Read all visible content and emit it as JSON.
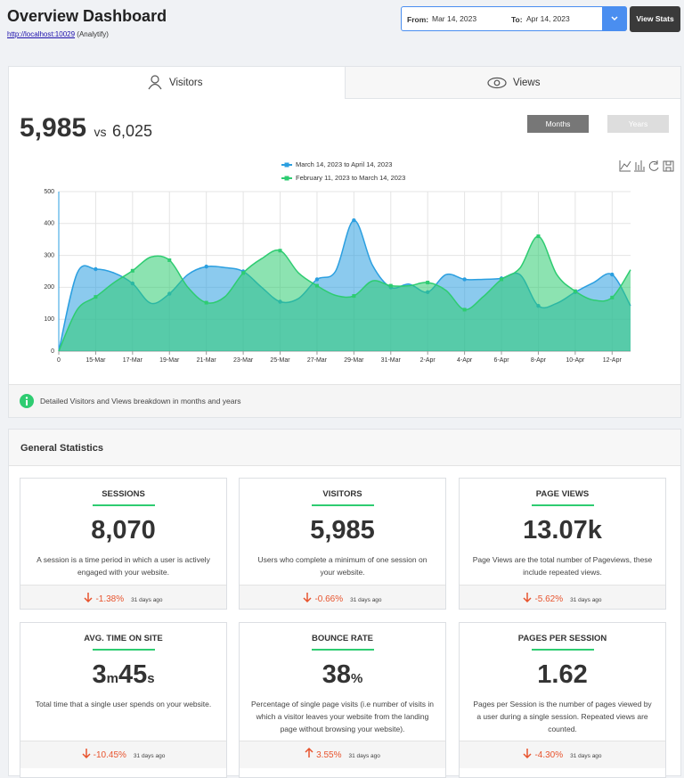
{
  "header": {
    "title": "Overview Dashboard",
    "link": "http://localhost:10029",
    "site": "(Analytify)"
  },
  "date_range": {
    "from_label": "From:",
    "from": "Mar 14, 2023",
    "to_label": "To:",
    "to": "Apr 14, 2023",
    "button": "View Stats"
  },
  "tabs": [
    "Visitors",
    "Views"
  ],
  "summary": {
    "current": "5,985",
    "vs": "vs",
    "previous": "6,025"
  },
  "period_buttons": [
    "Months",
    "Years"
  ],
  "chart_data": {
    "type": "area",
    "categories": [
      "0",
      null,
      "15-Mar",
      null,
      "17-Mar",
      null,
      "19-Mar",
      null,
      "21-Mar",
      null,
      "23-Mar",
      null,
      "25-Mar",
      null,
      "27-Mar",
      null,
      "29-Mar",
      null,
      "31-Mar",
      null,
      "2-Apr",
      null,
      "4-Apr",
      null,
      "6-Apr",
      null,
      "8-Apr",
      null,
      "10-Apr",
      null,
      "12-Apr",
      null
    ],
    "series": [
      {
        "name": "March 14, 2023 to April 14, 2023",
        "color": "#2b9fe0",
        "values": [
          0,
          245,
          257,
          245,
          212,
          150,
          180,
          240,
          265,
          262,
          250,
          200,
          155,
          165,
          225,
          250,
          410,
          270,
          200,
          210,
          185,
          240,
          225,
          225,
          228,
          240,
          142,
          150,
          185,
          215,
          240,
          142
        ]
      },
      {
        "name": "February 11, 2023 to March 14, 2023",
        "color": "#2ecc71",
        "values": [
          0,
          130,
          170,
          215,
          252,
          295,
          285,
          200,
          152,
          170,
          245,
          290,
          315,
          245,
          205,
          175,
          173,
          220,
          205,
          205,
          215,
          190,
          130,
          170,
          225,
          260,
          360,
          240,
          188,
          160,
          168,
          255
        ]
      }
    ],
    "ylim": [
      0,
      500
    ],
    "yticks": [
      0,
      100,
      200,
      300,
      400,
      500
    ],
    "grid": true
  },
  "info": "Detailed Visitors and Views breakdown in months and years",
  "general_statistics": {
    "title": "General Statistics",
    "cards": [
      {
        "title": "SESSIONS",
        "value": [
          "8,070"
        ],
        "description": "A session is a time period in which a user is actively engaged with your website.",
        "change": "-1.38%",
        "trend": "down",
        "since": "31 days ago"
      },
      {
        "title": "VISITORS",
        "value": [
          "5,985"
        ],
        "description": "Users who complete a minimum of one session on your website.",
        "change": "-0.66%",
        "trend": "down",
        "since": "31 days ago"
      },
      {
        "title": "PAGE VIEWS",
        "value": [
          "13.07k"
        ],
        "description": "Page Views are the total number of Pageviews, these include repeated views.",
        "change": "-5.62%",
        "trend": "down",
        "since": "31 days ago"
      },
      {
        "title": "AVG. TIME ON SITE",
        "value": [
          "3",
          "m",
          "45",
          "s"
        ],
        "description": "Total time that a single user spends on your website.",
        "change": "-10.45%",
        "trend": "down",
        "since": "31 days ago"
      },
      {
        "title": "BOUNCE RATE",
        "value": [
          "38",
          "%"
        ],
        "description": "Percentage of single page visits (i.e number of visits in which a visitor leaves your website from the landing page without browsing your website).",
        "change": "3.55%",
        "trend": "up",
        "since": "31 days ago"
      },
      {
        "title": "PAGES PER SESSION",
        "value": [
          "1.62"
        ],
        "description": "Pages per Session is the number of pages viewed by a user during a single session. Repeated views are counted.",
        "change": "-4.30%",
        "trend": "down",
        "since": "31 days ago"
      }
    ]
  }
}
